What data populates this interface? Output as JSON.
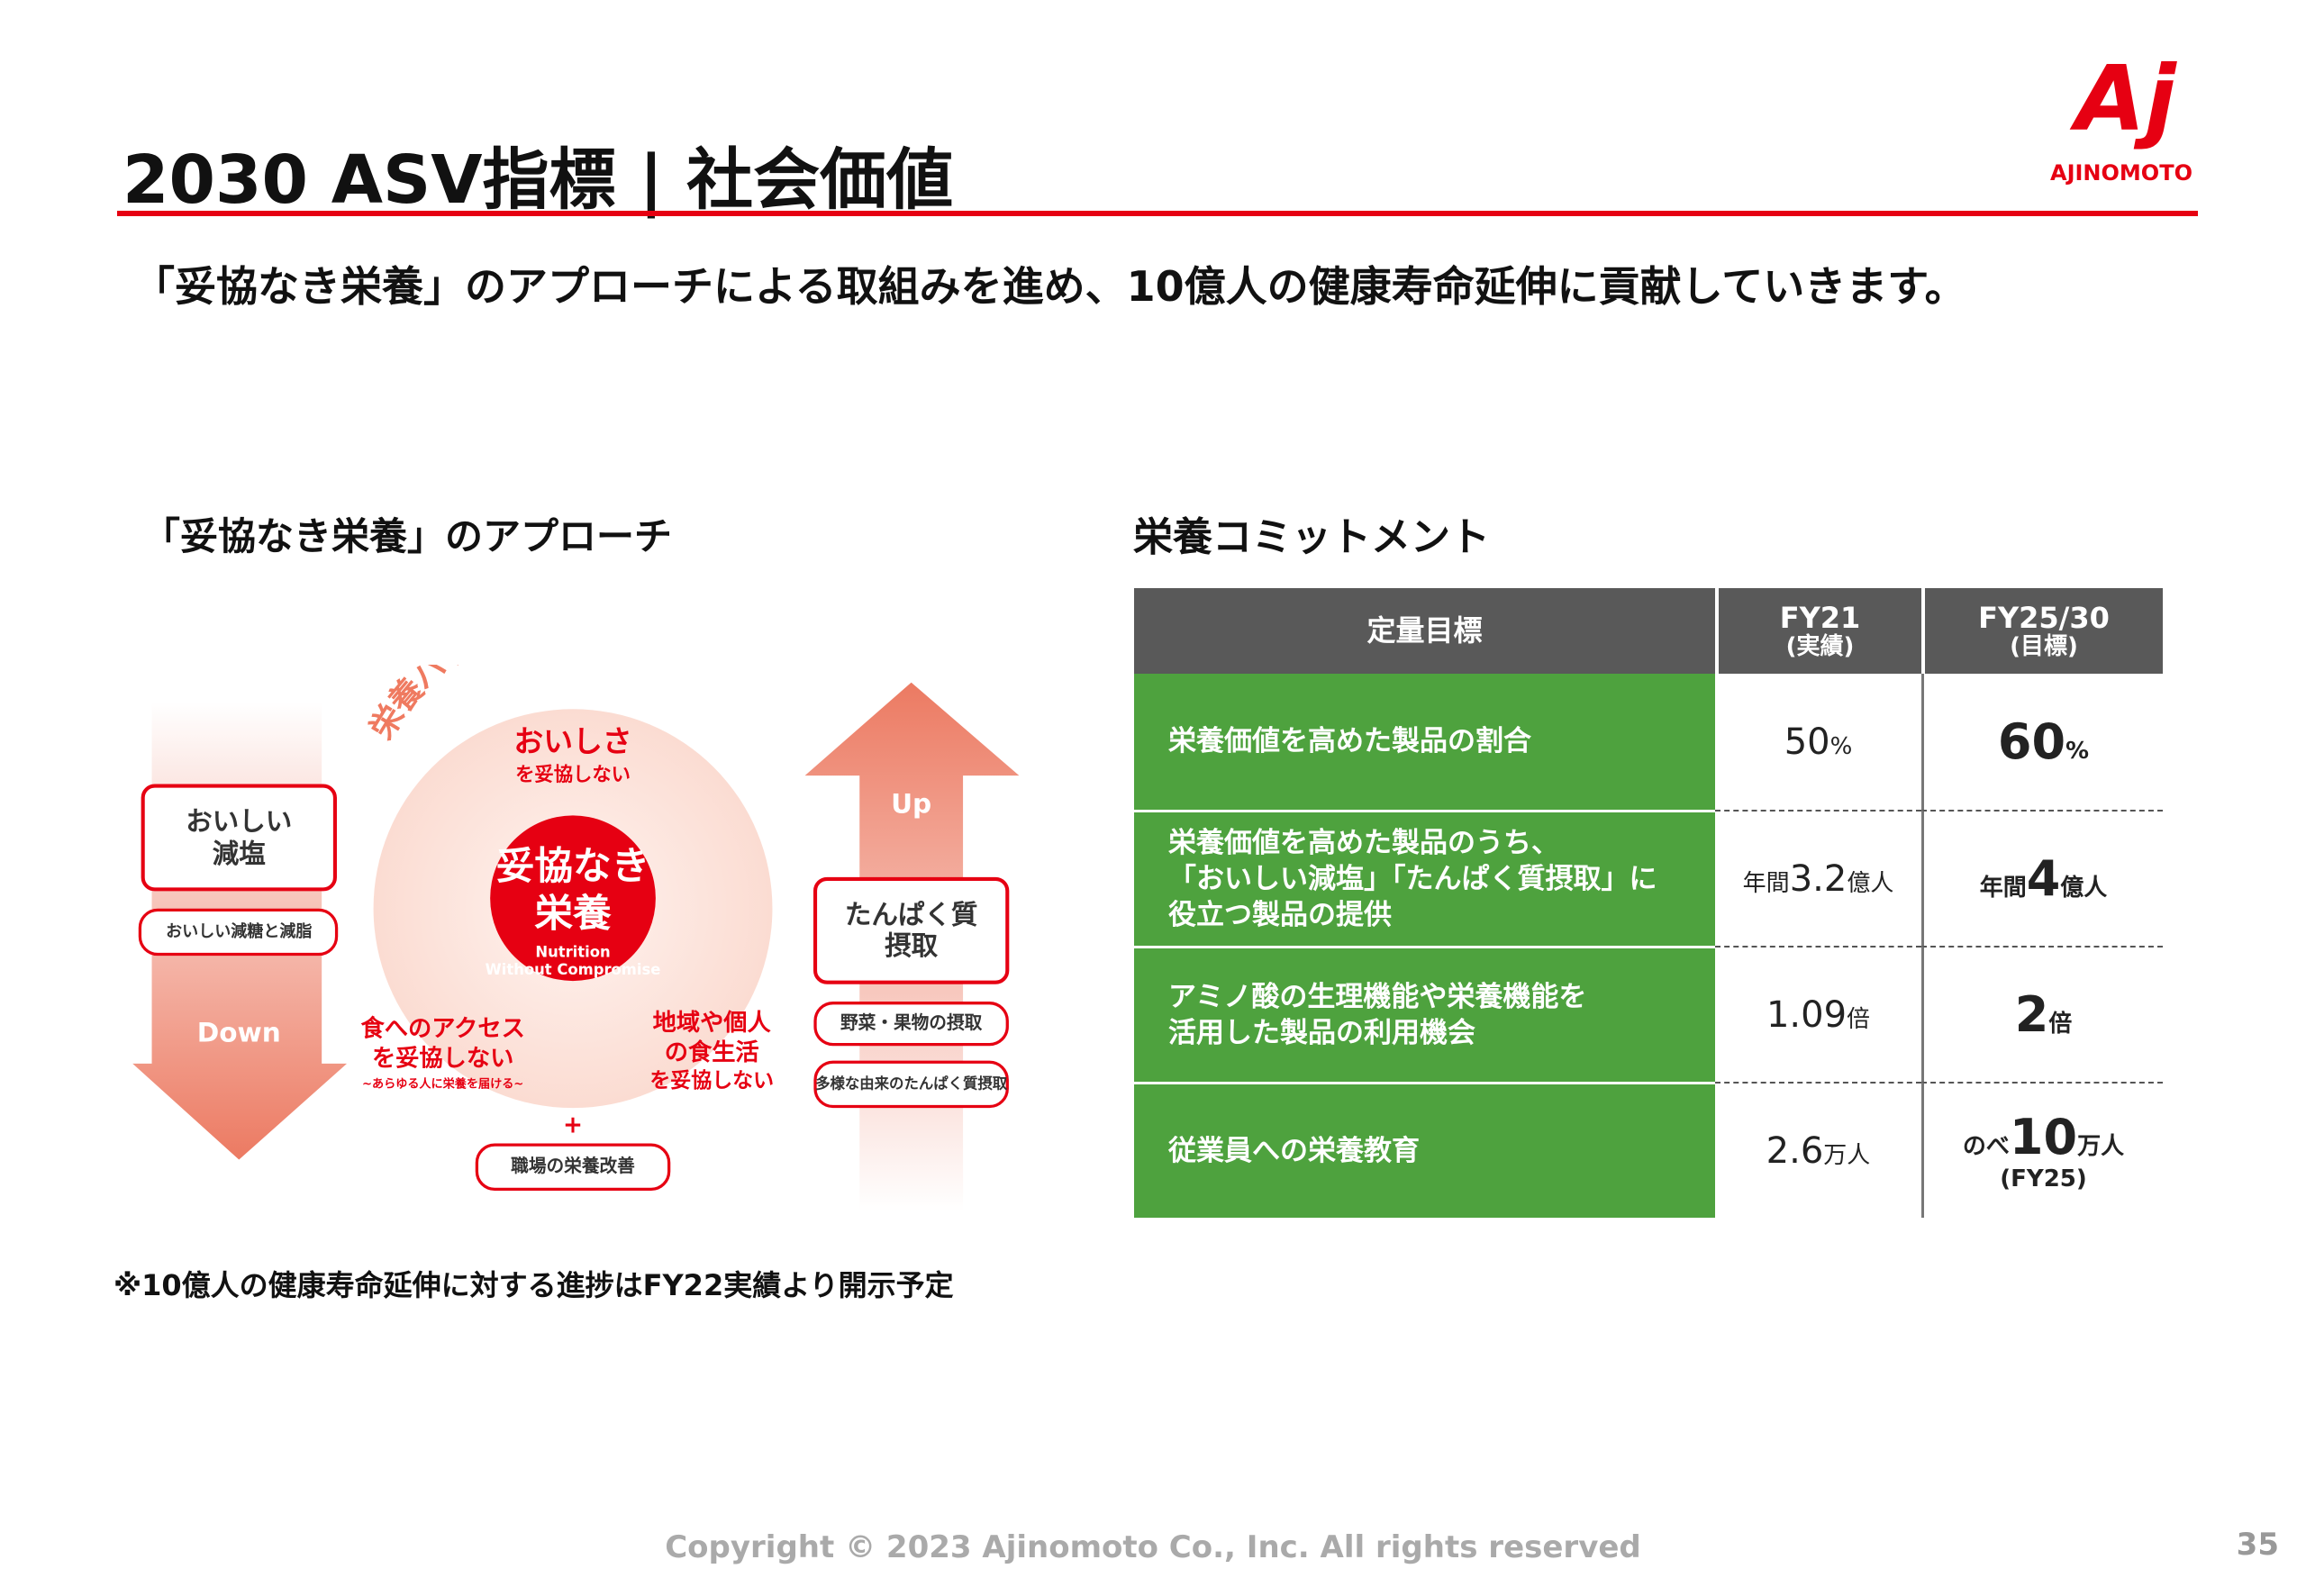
{
  "header": {
    "title": "2030 ASV指標 | 社会価値",
    "logo_mark": "Aj",
    "logo_text": "AJINOMOTO"
  },
  "subtitle": "「妥協なき栄養」のアプローチによる取組みを進め、10億人の健康寿命延伸に貢献していきます。",
  "diagram": {
    "heading": "「妥協なき栄養」のアプローチ",
    "arc_text": "栄養バランスの良い食事",
    "top": [
      "おいしさ",
      "を妥協しない"
    ],
    "center": [
      "妥協なき",
      "栄養"
    ],
    "center_en": [
      "Nutrition",
      "Without Compromise"
    ],
    "left_box": [
      "おいしい",
      "減塩"
    ],
    "left_sub": "おいしい減糖と減脂",
    "down": "Down",
    "up": "Up",
    "right_box": [
      "たんぱく質",
      "摂取"
    ],
    "right_subs": [
      "野菜・果物の摂取",
      "多様な由来のたんぱく質摂取"
    ],
    "bottom_left": [
      "食へのアクセス",
      "を妥協しない",
      "~あらゆる人に栄養を届ける~"
    ],
    "bottom_right": [
      "地域や個人",
      "の食生活",
      "を妥協しない"
    ],
    "plus": "+",
    "workplace": "職場の栄養改善"
  },
  "commitment": {
    "heading": "栄養コミットメント",
    "columns": [
      {
        "label": "定量目標"
      },
      {
        "label": "FY21",
        "sub": "(実績)"
      },
      {
        "label": "FY25/30",
        "sub": "(目標)"
      }
    ],
    "rows": [
      {
        "goal": [
          "栄養価値を高めた製品の割合"
        ],
        "fy21": {
          "num": 50,
          "unit": "%"
        },
        "target": {
          "num": 60,
          "unit": "%"
        }
      },
      {
        "goal": [
          "栄養価値を高めた製品のうち、",
          "「おいしい減塩」「たんぱく質摂取」に",
          "役立つ製品の提供"
        ],
        "fy21": {
          "pre": "年間",
          "num": 3.2,
          "unit": "億人"
        },
        "target": {
          "pre": "年間",
          "num": 4,
          "unit": "億人"
        }
      },
      {
        "goal": [
          "アミノ酸の生理機能や栄養機能を",
          "活用した製品の利用機会"
        ],
        "fy21": {
          "num": 1.09,
          "unit": "倍"
        },
        "target": {
          "num": 2,
          "unit": "倍"
        }
      },
      {
        "goal": [
          "従業員への栄養教育"
        ],
        "fy21": {
          "num": 2.6,
          "unit": "万人"
        },
        "target": {
          "pre": "のべ",
          "num": 10,
          "unit": "万人",
          "note": "(FY25)"
        }
      }
    ]
  },
  "footnote": "※10億人の健康寿命延伸に対する進捗はFY22実績より開示予定",
  "copyright": "Copyright © 2023 Ajinomoto Co., Inc. All rights reserved",
  "page_number": 35
}
